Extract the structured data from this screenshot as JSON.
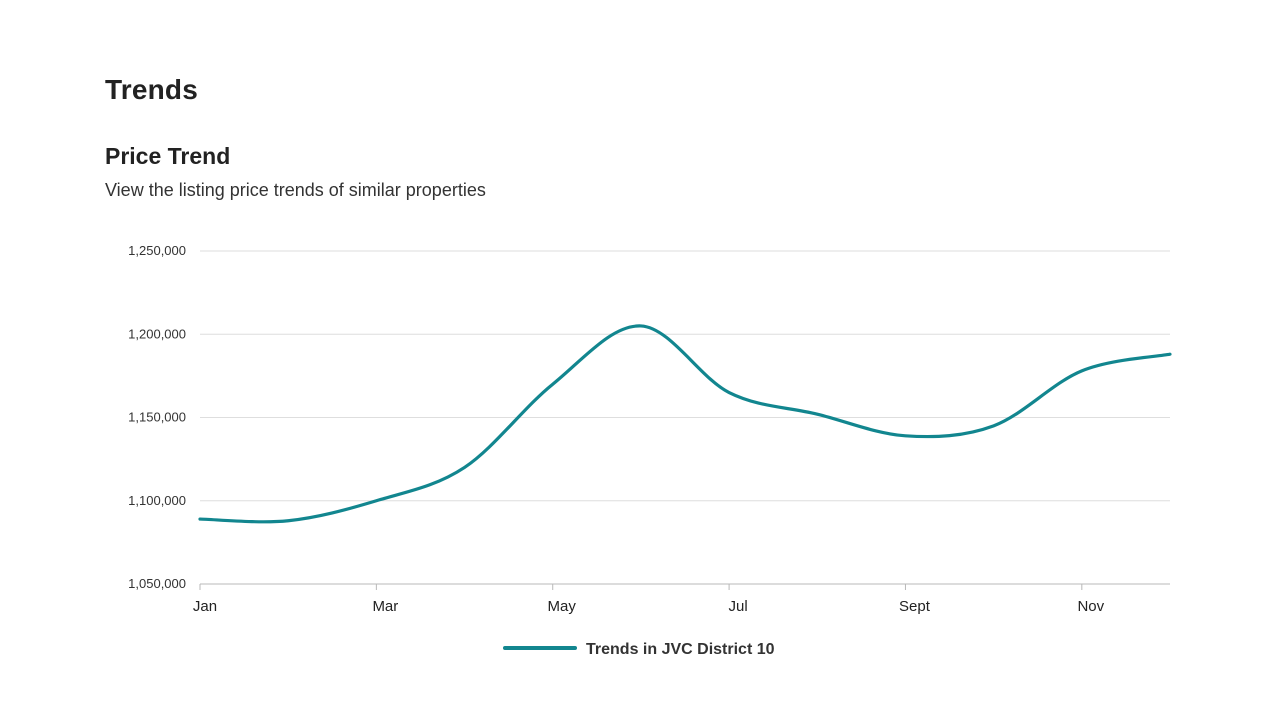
{
  "page": {
    "section_title": "Trends"
  },
  "chart_data": {
    "type": "line",
    "title": "Price Trend",
    "subtitle": "View the listing price trends of similar properties",
    "xlabel": "",
    "ylabel": "",
    "ylim": [
      1050000,
      1250000
    ],
    "yticks": [
      1050000,
      1100000,
      1150000,
      1200000,
      1250000
    ],
    "ytick_labels": [
      "1,050,000",
      "1,100,000",
      "1,150,000",
      "1,200,000",
      "1,250,000"
    ],
    "xlim": [
      0,
      11
    ],
    "xticks": [
      0,
      2,
      4,
      6,
      8,
      10
    ],
    "xtick_labels": [
      "Jan",
      "Mar",
      "May",
      "Jul",
      "Sept",
      "Nov"
    ],
    "grid": "horizontal",
    "legend_position": "bottom-center",
    "series": [
      {
        "name": "Trends in JVC District 10",
        "color": "#12868f",
        "x": [
          0,
          1,
          2,
          3,
          4,
          5,
          6,
          7,
          8,
          9,
          10,
          11
        ],
        "values": [
          1089000,
          1088000,
          1100000,
          1120000,
          1170000,
          1205000,
          1165000,
          1152000,
          1139000,
          1145000,
          1178000,
          1188000
        ]
      }
    ]
  }
}
